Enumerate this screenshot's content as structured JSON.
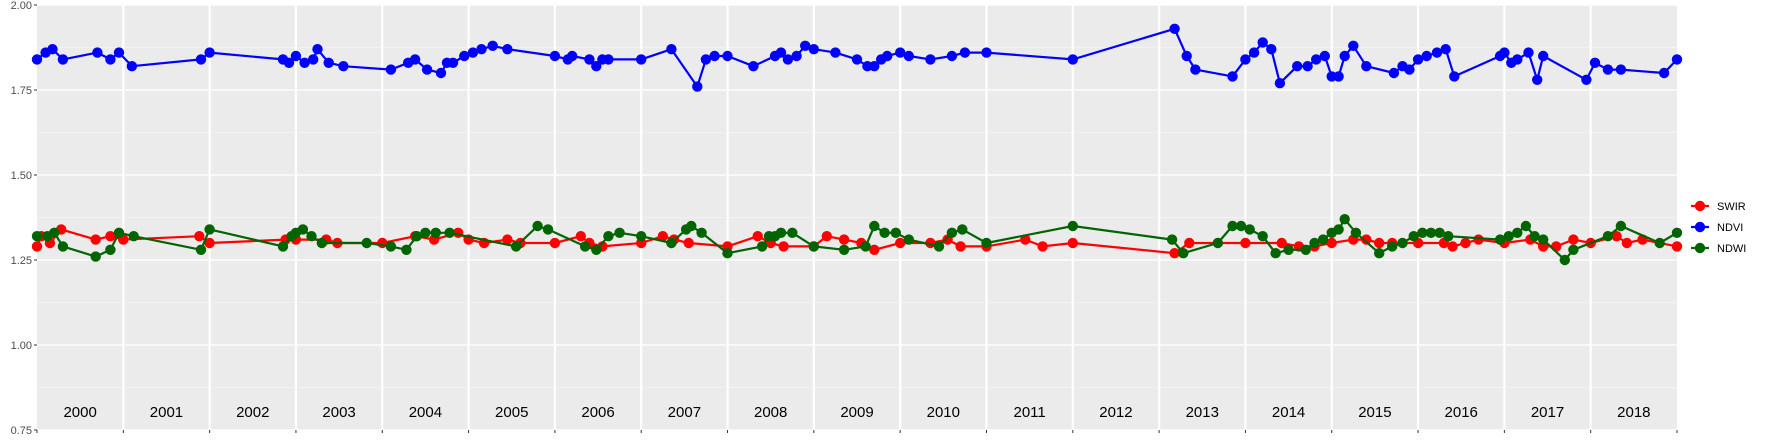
{
  "chart_data": {
    "type": "line",
    "title": "",
    "xlabel": "",
    "ylabel": "",
    "xlim": [
      2000.0,
      2019.0
    ],
    "ylim": [
      0.75,
      2.0
    ],
    "y_ticks": [
      "0.75",
      "1.00",
      "1.25",
      "1.50",
      "1.75",
      "2.00"
    ],
    "y_tick_values": [
      0.75,
      1.0,
      1.25,
      1.5,
      1.75,
      2.0
    ],
    "year_labels": [
      "2000",
      "2001",
      "2002",
      "2003",
      "2004",
      "2005",
      "2006",
      "2007",
      "2008",
      "2009",
      "2010",
      "2011",
      "2012",
      "2013",
      "2014",
      "2015",
      "2016",
      "2017",
      "2018"
    ],
    "grid": true,
    "legend_position": "right",
    "series": [
      {
        "name": "SWIR",
        "color": "#ff0000",
        "points": [
          [
            2000.0,
            1.29
          ],
          [
            2000.05,
            1.32
          ],
          [
            2000.15,
            1.3
          ],
          [
            2000.28,
            1.34
          ],
          [
            2000.68,
            1.31
          ],
          [
            2000.85,
            1.32
          ],
          [
            2001.0,
            1.31
          ],
          [
            2001.88,
            1.32
          ],
          [
            2002.0,
            1.3
          ],
          [
            2002.88,
            1.31
          ],
          [
            2002.98,
            1.32
          ],
          [
            2003.0,
            1.31
          ],
          [
            2003.35,
            1.31
          ],
          [
            2003.48,
            1.3
          ],
          [
            2004.0,
            1.3
          ],
          [
            2004.38,
            1.32
          ],
          [
            2004.6,
            1.31
          ],
          [
            2004.88,
            1.33
          ],
          [
            2005.0,
            1.31
          ],
          [
            2005.18,
            1.3
          ],
          [
            2005.45,
            1.31
          ],
          [
            2005.6,
            1.3
          ],
          [
            2006.0,
            1.3
          ],
          [
            2006.3,
            1.32
          ],
          [
            2006.4,
            1.3
          ],
          [
            2006.55,
            1.29
          ],
          [
            2007.0,
            1.3
          ],
          [
            2007.25,
            1.32
          ],
          [
            2007.38,
            1.31
          ],
          [
            2007.55,
            1.3
          ],
          [
            2008.0,
            1.29
          ],
          [
            2008.35,
            1.32
          ],
          [
            2008.5,
            1.3
          ],
          [
            2008.65,
            1.29
          ],
          [
            2009.0,
            1.29
          ],
          [
            2009.15,
            1.32
          ],
          [
            2009.35,
            1.31
          ],
          [
            2009.55,
            1.3
          ],
          [
            2009.7,
            1.28
          ],
          [
            2010.0,
            1.3
          ],
          [
            2010.35,
            1.3
          ],
          [
            2010.55,
            1.31
          ],
          [
            2010.7,
            1.29
          ],
          [
            2011.0,
            1.29
          ],
          [
            2011.45,
            1.31
          ],
          [
            2011.65,
            1.29
          ],
          [
            2012.0,
            1.3
          ],
          [
            2013.18,
            1.27
          ],
          [
            2013.35,
            1.3
          ],
          [
            2014.0,
            1.3
          ],
          [
            2014.42,
            1.3
          ],
          [
            2014.62,
            1.29
          ],
          [
            2014.8,
            1.29
          ],
          [
            2015.0,
            1.3
          ],
          [
            2015.25,
            1.31
          ],
          [
            2015.4,
            1.31
          ],
          [
            2015.55,
            1.3
          ],
          [
            2015.7,
            1.3
          ],
          [
            2016.0,
            1.3
          ],
          [
            2016.3,
            1.3
          ],
          [
            2016.4,
            1.29
          ],
          [
            2016.55,
            1.3
          ],
          [
            2016.7,
            1.31
          ],
          [
            2017.0,
            1.3
          ],
          [
            2017.3,
            1.31
          ],
          [
            2017.45,
            1.29
          ],
          [
            2017.6,
            1.29
          ],
          [
            2017.8,
            1.31
          ],
          [
            2018.0,
            1.3
          ],
          [
            2018.3,
            1.32
          ],
          [
            2018.42,
            1.3
          ],
          [
            2018.6,
            1.31
          ],
          [
            2019.0,
            1.29
          ]
        ]
      },
      {
        "name": "NDVI",
        "color": "#0000ff",
        "points": [
          [
            2000.0,
            1.84
          ],
          [
            2000.1,
            1.86
          ],
          [
            2000.18,
            1.87
          ],
          [
            2000.3,
            1.84
          ],
          [
            2000.7,
            1.86
          ],
          [
            2000.85,
            1.84
          ],
          [
            2000.95,
            1.86
          ],
          [
            2001.1,
            1.82
          ],
          [
            2001.9,
            1.84
          ],
          [
            2002.0,
            1.86
          ],
          [
            2002.85,
            1.84
          ],
          [
            2002.92,
            1.83
          ],
          [
            2003.0,
            1.85
          ],
          [
            2003.1,
            1.83
          ],
          [
            2003.2,
            1.84
          ],
          [
            2003.25,
            1.87
          ],
          [
            2003.38,
            1.83
          ],
          [
            2003.55,
            1.82
          ],
          [
            2004.1,
            1.81
          ],
          [
            2004.3,
            1.83
          ],
          [
            2004.38,
            1.84
          ],
          [
            2004.52,
            1.81
          ],
          [
            2004.68,
            1.8
          ],
          [
            2004.75,
            1.83
          ],
          [
            2004.82,
            1.83
          ],
          [
            2004.95,
            1.85
          ],
          [
            2005.05,
            1.86
          ],
          [
            2005.15,
            1.87
          ],
          [
            2005.28,
            1.88
          ],
          [
            2005.45,
            1.87
          ],
          [
            2006.0,
            1.85
          ],
          [
            2006.15,
            1.84
          ],
          [
            2006.2,
            1.85
          ],
          [
            2006.4,
            1.84
          ],
          [
            2006.48,
            1.82
          ],
          [
            2006.55,
            1.84
          ],
          [
            2006.62,
            1.84
          ],
          [
            2007.0,
            1.84
          ],
          [
            2007.35,
            1.87
          ],
          [
            2007.65,
            1.76
          ],
          [
            2007.75,
            1.84
          ],
          [
            2007.85,
            1.85
          ],
          [
            2008.0,
            1.85
          ],
          [
            2008.3,
            1.82
          ],
          [
            2008.55,
            1.85
          ],
          [
            2008.62,
            1.86
          ],
          [
            2008.7,
            1.84
          ],
          [
            2008.8,
            1.85
          ],
          [
            2008.9,
            1.88
          ],
          [
            2009.0,
            1.87
          ],
          [
            2009.25,
            1.86
          ],
          [
            2009.5,
            1.84
          ],
          [
            2009.62,
            1.82
          ],
          [
            2009.7,
            1.82
          ],
          [
            2009.78,
            1.84
          ],
          [
            2009.85,
            1.85
          ],
          [
            2010.0,
            1.86
          ],
          [
            2010.1,
            1.85
          ],
          [
            2010.35,
            1.84
          ],
          [
            2010.6,
            1.85
          ],
          [
            2010.75,
            1.86
          ],
          [
            2011.0,
            1.86
          ],
          [
            2012.0,
            1.84
          ],
          [
            2013.18,
            1.93
          ],
          [
            2013.32,
            1.85
          ],
          [
            2013.42,
            1.81
          ],
          [
            2013.85,
            1.79
          ],
          [
            2014.0,
            1.84
          ],
          [
            2014.1,
            1.86
          ],
          [
            2014.2,
            1.89
          ],
          [
            2014.3,
            1.87
          ],
          [
            2014.4,
            1.77
          ],
          [
            2014.6,
            1.82
          ],
          [
            2014.72,
            1.82
          ],
          [
            2014.82,
            1.84
          ],
          [
            2014.92,
            1.85
          ],
          [
            2015.0,
            1.79
          ],
          [
            2015.08,
            1.79
          ],
          [
            2015.15,
            1.85
          ],
          [
            2015.25,
            1.88
          ],
          [
            2015.4,
            1.82
          ],
          [
            2015.72,
            1.8
          ],
          [
            2015.82,
            1.82
          ],
          [
            2015.9,
            1.81
          ],
          [
            2016.0,
            1.84
          ],
          [
            2016.1,
            1.85
          ],
          [
            2016.22,
            1.86
          ],
          [
            2016.32,
            1.87
          ],
          [
            2016.42,
            1.79
          ],
          [
            2016.95,
            1.85
          ],
          [
            2017.0,
            1.86
          ],
          [
            2017.08,
            1.83
          ],
          [
            2017.15,
            1.84
          ],
          [
            2017.28,
            1.86
          ],
          [
            2017.38,
            1.78
          ],
          [
            2017.45,
            1.85
          ],
          [
            2017.95,
            1.78
          ],
          [
            2018.05,
            1.83
          ],
          [
            2018.2,
            1.81
          ],
          [
            2018.35,
            1.81
          ],
          [
            2018.85,
            1.8
          ],
          [
            2019.0,
            1.84
          ]
        ]
      },
      {
        "name": "NDWI",
        "color": "#006400",
        "points": [
          [
            2000.0,
            1.32
          ],
          [
            2000.12,
            1.32
          ],
          [
            2000.2,
            1.33
          ],
          [
            2000.3,
            1.29
          ],
          [
            2000.68,
            1.26
          ],
          [
            2000.85,
            1.28
          ],
          [
            2000.95,
            1.33
          ],
          [
            2001.12,
            1.32
          ],
          [
            2001.9,
            1.28
          ],
          [
            2002.0,
            1.34
          ],
          [
            2002.85,
            1.29
          ],
          [
            2002.95,
            1.32
          ],
          [
            2003.0,
            1.33
          ],
          [
            2003.08,
            1.34
          ],
          [
            2003.18,
            1.32
          ],
          [
            2003.3,
            1.3
          ],
          [
            2003.82,
            1.3
          ],
          [
            2004.1,
            1.29
          ],
          [
            2004.28,
            1.28
          ],
          [
            2004.4,
            1.32
          ],
          [
            2004.5,
            1.33
          ],
          [
            2004.62,
            1.33
          ],
          [
            2004.78,
            1.33
          ],
          [
            2005.55,
            1.29
          ],
          [
            2005.8,
            1.35
          ],
          [
            2005.92,
            1.34
          ],
          [
            2006.35,
            1.29
          ],
          [
            2006.48,
            1.28
          ],
          [
            2006.62,
            1.32
          ],
          [
            2006.75,
            1.33
          ],
          [
            2007.0,
            1.32
          ],
          [
            2007.35,
            1.3
          ],
          [
            2007.52,
            1.34
          ],
          [
            2007.58,
            1.35
          ],
          [
            2007.7,
            1.33
          ],
          [
            2008.0,
            1.27
          ],
          [
            2008.4,
            1.29
          ],
          [
            2008.48,
            1.32
          ],
          [
            2008.55,
            1.32
          ],
          [
            2008.62,
            1.33
          ],
          [
            2008.75,
            1.33
          ],
          [
            2009.0,
            1.29
          ],
          [
            2009.35,
            1.28
          ],
          [
            2009.6,
            1.29
          ],
          [
            2009.7,
            1.35
          ],
          [
            2009.82,
            1.33
          ],
          [
            2009.95,
            1.33
          ],
          [
            2010.1,
            1.31
          ],
          [
            2010.45,
            1.29
          ],
          [
            2010.6,
            1.33
          ],
          [
            2010.72,
            1.34
          ],
          [
            2011.0,
            1.3
          ],
          [
            2012.0,
            1.35
          ],
          [
            2013.15,
            1.31
          ],
          [
            2013.28,
            1.27
          ],
          [
            2013.68,
            1.3
          ],
          [
            2013.85,
            1.35
          ],
          [
            2013.95,
            1.35
          ],
          [
            2014.05,
            1.34
          ],
          [
            2014.2,
            1.32
          ],
          [
            2014.35,
            1.27
          ],
          [
            2014.5,
            1.28
          ],
          [
            2014.7,
            1.28
          ],
          [
            2014.8,
            1.3
          ],
          [
            2014.9,
            1.31
          ],
          [
            2015.0,
            1.33
          ],
          [
            2015.08,
            1.34
          ],
          [
            2015.15,
            1.37
          ],
          [
            2015.28,
            1.33
          ],
          [
            2015.55,
            1.27
          ],
          [
            2015.7,
            1.29
          ],
          [
            2015.82,
            1.3
          ],
          [
            2015.95,
            1.32
          ],
          [
            2016.05,
            1.33
          ],
          [
            2016.15,
            1.33
          ],
          [
            2016.25,
            1.33
          ],
          [
            2016.35,
            1.32
          ],
          [
            2016.95,
            1.31
          ],
          [
            2017.05,
            1.32
          ],
          [
            2017.15,
            1.33
          ],
          [
            2017.25,
            1.35
          ],
          [
            2017.35,
            1.32
          ],
          [
            2017.45,
            1.31
          ],
          [
            2017.7,
            1.25
          ],
          [
            2017.8,
            1.28
          ],
          [
            2018.2,
            1.32
          ],
          [
            2018.35,
            1.35
          ],
          [
            2018.8,
            1.3
          ],
          [
            2019.0,
            1.33
          ]
        ]
      }
    ]
  }
}
